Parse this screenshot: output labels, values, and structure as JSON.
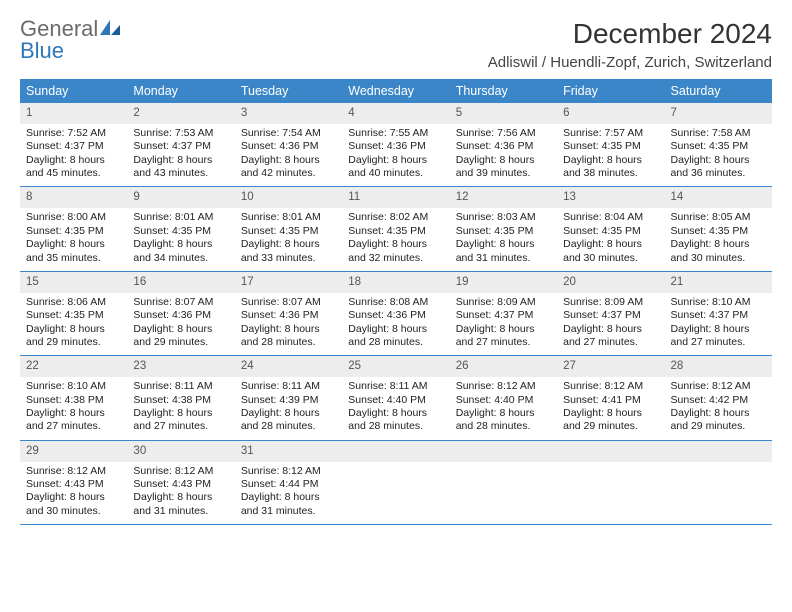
{
  "logo": {
    "word1": "General",
    "word2": "Blue"
  },
  "title": "December 2024",
  "location": "Adliswil / Huendli-Zopf, Zurich, Switzerland",
  "dow_bg": "#3a86c8",
  "daynum_bg": "#ededed",
  "border_color": "#3a86c8",
  "daysOfWeek": [
    "Sunday",
    "Monday",
    "Tuesday",
    "Wednesday",
    "Thursday",
    "Friday",
    "Saturday"
  ],
  "weeks": [
    [
      {
        "n": "1",
        "sr": "Sunrise: 7:52 AM",
        "ss": "Sunset: 4:37 PM",
        "d1": "Daylight: 8 hours",
        "d2": "and 45 minutes."
      },
      {
        "n": "2",
        "sr": "Sunrise: 7:53 AM",
        "ss": "Sunset: 4:37 PM",
        "d1": "Daylight: 8 hours",
        "d2": "and 43 minutes."
      },
      {
        "n": "3",
        "sr": "Sunrise: 7:54 AM",
        "ss": "Sunset: 4:36 PM",
        "d1": "Daylight: 8 hours",
        "d2": "and 42 minutes."
      },
      {
        "n": "4",
        "sr": "Sunrise: 7:55 AM",
        "ss": "Sunset: 4:36 PM",
        "d1": "Daylight: 8 hours",
        "d2": "and 40 minutes."
      },
      {
        "n": "5",
        "sr": "Sunrise: 7:56 AM",
        "ss": "Sunset: 4:36 PM",
        "d1": "Daylight: 8 hours",
        "d2": "and 39 minutes."
      },
      {
        "n": "6",
        "sr": "Sunrise: 7:57 AM",
        "ss": "Sunset: 4:35 PM",
        "d1": "Daylight: 8 hours",
        "d2": "and 38 minutes."
      },
      {
        "n": "7",
        "sr": "Sunrise: 7:58 AM",
        "ss": "Sunset: 4:35 PM",
        "d1": "Daylight: 8 hours",
        "d2": "and 36 minutes."
      }
    ],
    [
      {
        "n": "8",
        "sr": "Sunrise: 8:00 AM",
        "ss": "Sunset: 4:35 PM",
        "d1": "Daylight: 8 hours",
        "d2": "and 35 minutes."
      },
      {
        "n": "9",
        "sr": "Sunrise: 8:01 AM",
        "ss": "Sunset: 4:35 PM",
        "d1": "Daylight: 8 hours",
        "d2": "and 34 minutes."
      },
      {
        "n": "10",
        "sr": "Sunrise: 8:01 AM",
        "ss": "Sunset: 4:35 PM",
        "d1": "Daylight: 8 hours",
        "d2": "and 33 minutes."
      },
      {
        "n": "11",
        "sr": "Sunrise: 8:02 AM",
        "ss": "Sunset: 4:35 PM",
        "d1": "Daylight: 8 hours",
        "d2": "and 32 minutes."
      },
      {
        "n": "12",
        "sr": "Sunrise: 8:03 AM",
        "ss": "Sunset: 4:35 PM",
        "d1": "Daylight: 8 hours",
        "d2": "and 31 minutes."
      },
      {
        "n": "13",
        "sr": "Sunrise: 8:04 AM",
        "ss": "Sunset: 4:35 PM",
        "d1": "Daylight: 8 hours",
        "d2": "and 30 minutes."
      },
      {
        "n": "14",
        "sr": "Sunrise: 8:05 AM",
        "ss": "Sunset: 4:35 PM",
        "d1": "Daylight: 8 hours",
        "d2": "and 30 minutes."
      }
    ],
    [
      {
        "n": "15",
        "sr": "Sunrise: 8:06 AM",
        "ss": "Sunset: 4:35 PM",
        "d1": "Daylight: 8 hours",
        "d2": "and 29 minutes."
      },
      {
        "n": "16",
        "sr": "Sunrise: 8:07 AM",
        "ss": "Sunset: 4:36 PM",
        "d1": "Daylight: 8 hours",
        "d2": "and 29 minutes."
      },
      {
        "n": "17",
        "sr": "Sunrise: 8:07 AM",
        "ss": "Sunset: 4:36 PM",
        "d1": "Daylight: 8 hours",
        "d2": "and 28 minutes."
      },
      {
        "n": "18",
        "sr": "Sunrise: 8:08 AM",
        "ss": "Sunset: 4:36 PM",
        "d1": "Daylight: 8 hours",
        "d2": "and 28 minutes."
      },
      {
        "n": "19",
        "sr": "Sunrise: 8:09 AM",
        "ss": "Sunset: 4:37 PM",
        "d1": "Daylight: 8 hours",
        "d2": "and 27 minutes."
      },
      {
        "n": "20",
        "sr": "Sunrise: 8:09 AM",
        "ss": "Sunset: 4:37 PM",
        "d1": "Daylight: 8 hours",
        "d2": "and 27 minutes."
      },
      {
        "n": "21",
        "sr": "Sunrise: 8:10 AM",
        "ss": "Sunset: 4:37 PM",
        "d1": "Daylight: 8 hours",
        "d2": "and 27 minutes."
      }
    ],
    [
      {
        "n": "22",
        "sr": "Sunrise: 8:10 AM",
        "ss": "Sunset: 4:38 PM",
        "d1": "Daylight: 8 hours",
        "d2": "and 27 minutes."
      },
      {
        "n": "23",
        "sr": "Sunrise: 8:11 AM",
        "ss": "Sunset: 4:38 PM",
        "d1": "Daylight: 8 hours",
        "d2": "and 27 minutes."
      },
      {
        "n": "24",
        "sr": "Sunrise: 8:11 AM",
        "ss": "Sunset: 4:39 PM",
        "d1": "Daylight: 8 hours",
        "d2": "and 28 minutes."
      },
      {
        "n": "25",
        "sr": "Sunrise: 8:11 AM",
        "ss": "Sunset: 4:40 PM",
        "d1": "Daylight: 8 hours",
        "d2": "and 28 minutes."
      },
      {
        "n": "26",
        "sr": "Sunrise: 8:12 AM",
        "ss": "Sunset: 4:40 PM",
        "d1": "Daylight: 8 hours",
        "d2": "and 28 minutes."
      },
      {
        "n": "27",
        "sr": "Sunrise: 8:12 AM",
        "ss": "Sunset: 4:41 PM",
        "d1": "Daylight: 8 hours",
        "d2": "and 29 minutes."
      },
      {
        "n": "28",
        "sr": "Sunrise: 8:12 AM",
        "ss": "Sunset: 4:42 PM",
        "d1": "Daylight: 8 hours",
        "d2": "and 29 minutes."
      }
    ],
    [
      {
        "n": "29",
        "sr": "Sunrise: 8:12 AM",
        "ss": "Sunset: 4:43 PM",
        "d1": "Daylight: 8 hours",
        "d2": "and 30 minutes."
      },
      {
        "n": "30",
        "sr": "Sunrise: 8:12 AM",
        "ss": "Sunset: 4:43 PM",
        "d1": "Daylight: 8 hours",
        "d2": "and 31 minutes."
      },
      {
        "n": "31",
        "sr": "Sunrise: 8:12 AM",
        "ss": "Sunset: 4:44 PM",
        "d1": "Daylight: 8 hours",
        "d2": "and 31 minutes."
      },
      {
        "empty": true
      },
      {
        "empty": true
      },
      {
        "empty": true
      },
      {
        "empty": true
      }
    ]
  ]
}
